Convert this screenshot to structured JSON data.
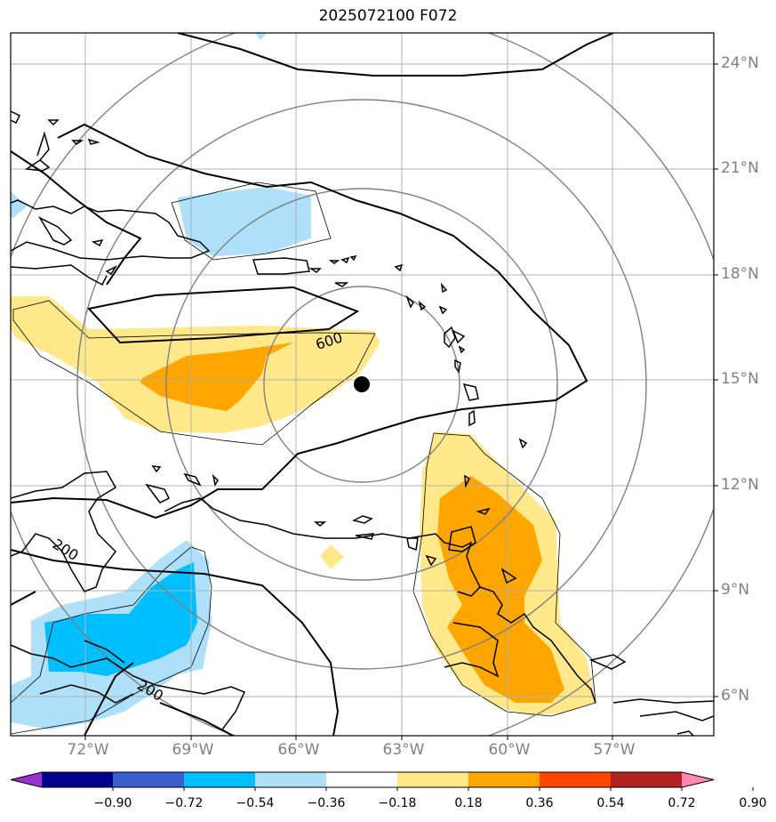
{
  "title": "2025072100 F072",
  "lat_labels": [
    "24°N",
    "21°N",
    "18°N",
    "15°N",
    "12°N",
    "9°N",
    "6°N"
  ],
  "lon_labels": [
    "72°W",
    "69°W",
    "66°W",
    "63°W",
    "60°W",
    "57°W"
  ],
  "contour_labels": [
    "600",
    "200",
    "200"
  ],
  "colorbar": {
    "ticks": [
      "−0.90",
      "−0.72",
      "−0.54",
      "−0.36",
      "−0.18",
      "0.18",
      "0.36",
      "0.54",
      "0.72",
      "0.90"
    ],
    "colors": [
      "#9b30d0",
      "#00008b",
      "#3a5fcd",
      "#00bfff",
      "#aee0fa",
      "#ffffff",
      "#ffe88a",
      "#ffa500",
      "#ff4500",
      "#b22222",
      "#ff88b0"
    ]
  },
  "colors": {
    "grid": "#b0b0b0",
    "range_rings": "#808080",
    "coast": "#000000",
    "light_blue": "#aee0fa",
    "blue": "#00bfff",
    "yellow": "#ffe88a",
    "orange": "#ffa500"
  }
}
